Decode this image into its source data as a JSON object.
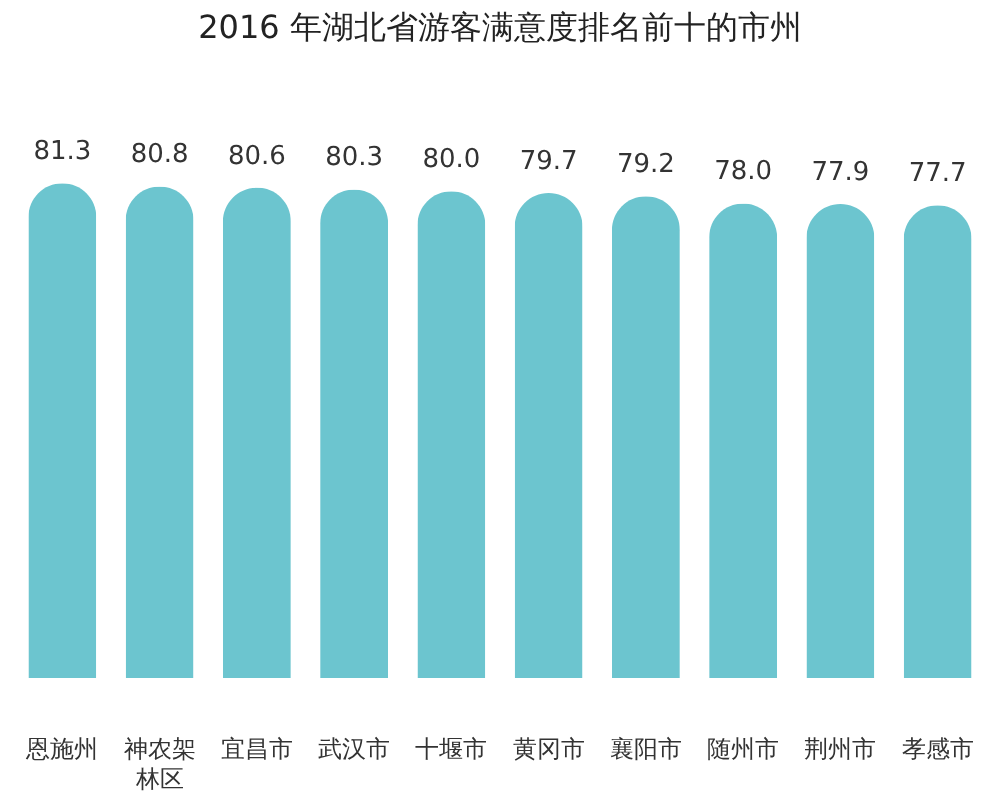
{
  "chart_data": {
    "type": "bar",
    "title": "2016 年湖北省游客满意度排名前十的市州",
    "categories": [
      "恩施州",
      "神农架林区",
      "宜昌市",
      "武汉市",
      "十堰市",
      "黄冈市",
      "襄阳市",
      "随州市",
      "荆州市",
      "孝感市"
    ],
    "values": [
      81.3,
      80.8,
      80.6,
      80.3,
      80.0,
      79.7,
      79.2,
      78.0,
      77.9,
      77.7
    ],
    "value_labels": [
      "81.3",
      "80.8",
      "80.6",
      "80.3",
      "80.0",
      "79.7",
      "79.2",
      "78.0",
      "77.9",
      "77.7"
    ],
    "color": "#6cc5cf"
  }
}
